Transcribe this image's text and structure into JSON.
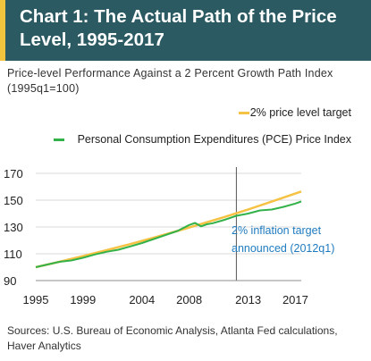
{
  "title": "Chart 1: The Actual Path of the Price Level, 1995-2017",
  "chart_data": {
    "type": "line",
    "title": "Chart 1: The Actual Path of the Price Level, 1995-2017",
    "subtitle": "Price-level  Performance Against a 2 Percent Growth Path Index (1995q1=100)",
    "x_ticks": [
      "1995",
      "1999",
      "2004",
      "2008",
      "2013",
      "2017"
    ],
    "y_ticks": [
      "90",
      "110",
      "130",
      "150",
      "170"
    ],
    "xlim": [
      1995.0,
      2017.5
    ],
    "ylim": [
      90,
      170
    ],
    "grid": "horizontal",
    "legend_position": "top-right",
    "series": [
      {
        "name": "2% price level target",
        "color": "#f5c244",
        "x": [
          1995.0,
          1997.0,
          1999.0,
          2001.0,
          2003.0,
          2005.0,
          2007.0,
          2009.0,
          2011.0,
          2013.0,
          2015.0,
          2017.5
        ],
        "y": [
          100,
          104,
          108.3,
          112.7,
          117.2,
          122,
          127,
          132.2,
          137.5,
          143.1,
          148.9,
          156.5
        ]
      },
      {
        "name": "Personal Consumption Expenditures  (PCE) Price Index",
        "color": "#34b24a",
        "x": [
          1995.0,
          1996.0,
          1997.0,
          1998.0,
          1999.0,
          2000.0,
          2001.0,
          2002.0,
          2003.0,
          2004.0,
          2005.0,
          2006.0,
          2007.0,
          2008.0,
          2008.5,
          2009.0,
          2009.5,
          2010.0,
          2011.0,
          2012.0,
          2013.0,
          2014.0,
          2015.0,
          2016.0,
          2017.0,
          2017.5
        ],
        "y": [
          100,
          102,
          104,
          105,
          107,
          109.5,
          111.5,
          113,
          115.5,
          118,
          121,
          124,
          127,
          131.5,
          133,
          130.5,
          132,
          132.8,
          135.3,
          138.3,
          140,
          142.3,
          143,
          145,
          147.5,
          149
        ]
      }
    ],
    "annotations": [
      {
        "text": "2% inflation target announced (2012q1)",
        "x": 2012.0
      }
    ]
  },
  "annotation_lines": [
    "2% inflation target",
    "announced (2012q1)"
  ],
  "sources": "Sources: U.S. Bureau of  Economic Analysis, Atlanta Fed calculations, Haver Analytics"
}
